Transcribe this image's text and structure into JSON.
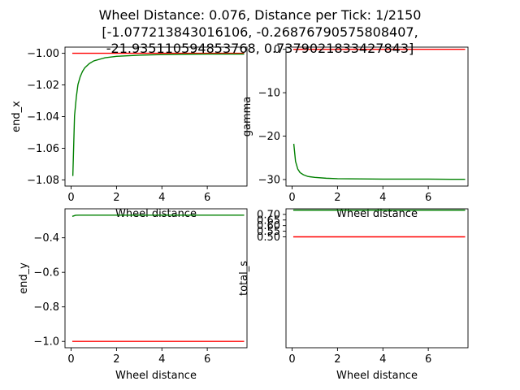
{
  "title_lines": [
    "Wheel Distance: 0.076, Distance per Tick: 1/2150",
    "[-1.077213843016106, -0.26876790575808407,",
    "-21.935110594853768, 0.7379021833427843]"
  ],
  "colors": {
    "series_a": "#ff0000",
    "series_b": "#008000",
    "axes": "#000000"
  },
  "chart_data": [
    {
      "type": "line",
      "xlabel": "Wheel distance",
      "ylabel": "end_x",
      "xlim": [
        -0.27,
        7.75
      ],
      "ylim": [
        -1.0839,
        -0.9961
      ],
      "xticks": [
        0,
        2,
        4,
        6
      ],
      "yticks": [
        -1.08,
        -1.06,
        -1.04,
        -1.02,
        -1.0
      ],
      "ytick_labels": [
        "−1.08",
        "−1.06",
        "−1.04",
        "−1.02",
        "−1.00"
      ],
      "grid": false,
      "series": [
        {
          "color": "#ff0000",
          "x": [
            0.076,
            7.6
          ],
          "y": [
            -1.0,
            -1.0
          ]
        },
        {
          "color": "#008000",
          "x": [
            0.076,
            0.15,
            0.23,
            0.3,
            0.4,
            0.5,
            0.6,
            0.8,
            1.0,
            1.5,
            2.0,
            3.0,
            4.0,
            5.0,
            6.0,
            7.0,
            7.6
          ],
          "y": [
            -1.0772,
            -1.0395,
            -1.0275,
            -1.0198,
            -1.0148,
            -1.0115,
            -1.0092,
            -1.0065,
            -1.0048,
            -1.0028,
            -1.0019,
            -1.0012,
            -1.0008,
            -1.0006,
            -1.0005,
            -1.0005,
            -1.0005
          ]
        }
      ]
    },
    {
      "type": "line",
      "xlabel": "Wheel distance",
      "ylabel": "gamma",
      "xlim": [
        -0.27,
        7.75
      ],
      "ylim": [
        -31.5,
        0.5
      ],
      "xticks": [
        0,
        2,
        4,
        6
      ],
      "yticks": [
        -30,
        -20,
        -10,
        0
      ],
      "ytick_labels": [
        "−30",
        "−20",
        "−10",
        "0"
      ],
      "grid": false,
      "series": [
        {
          "color": "#ff0000",
          "x": [
            0.076,
            7.6
          ],
          "y": [
            0,
            0
          ]
        },
        {
          "color": "#008000",
          "x": [
            0.076,
            0.15,
            0.25,
            0.35,
            0.5,
            0.7,
            1.0,
            1.5,
            2.0,
            3.0,
            4.0,
            5.0,
            6.0,
            7.0,
            7.6
          ],
          "y": [
            -21.9,
            -25.8,
            -27.6,
            -28.4,
            -28.9,
            -29.3,
            -29.5,
            -29.7,
            -29.8,
            -29.85,
            -29.9,
            -29.9,
            -29.9,
            -29.95,
            -29.95
          ]
        }
      ]
    },
    {
      "type": "line",
      "xlabel": "Wheel distance",
      "ylabel": "end_y",
      "xlim": [
        -0.27,
        7.75
      ],
      "ylim": [
        -1.0366,
        -0.2322
      ],
      "xticks": [
        0,
        2,
        4,
        6
      ],
      "yticks": [
        -1.0,
        -0.8,
        -0.6,
        -0.4
      ],
      "ytick_labels": [
        "−1.0",
        "−0.8",
        "−0.6",
        "−0.4"
      ],
      "grid": false,
      "series": [
        {
          "color": "#ff0000",
          "x": [
            0.076,
            7.6
          ],
          "y": [
            -1.0,
            -1.0
          ]
        },
        {
          "color": "#008000",
          "x": [
            0.076,
            0.2,
            0.35,
            0.6,
            1.0,
            2.0,
            4.0,
            6.0,
            7.6
          ],
          "y": [
            -0.275,
            -0.2695,
            -0.2688,
            -0.2688,
            -0.2688,
            -0.2688,
            -0.2688,
            -0.2688,
            -0.2688
          ]
        }
      ]
    },
    {
      "type": "line",
      "xlabel": "Wheel distance",
      "ylabel": "total_s",
      "xlim": [
        -0.27,
        7.75
      ],
      "ylim": [
        -0.4881,
        0.7497
      ],
      "xticks": [
        0,
        2,
        4,
        6
      ],
      "yticks": [
        0.5,
        0.55,
        0.6,
        0.65,
        0.7
      ],
      "ytick_labels": [
        "0.50",
        "0.55",
        "0.60",
        "0.65",
        "0.70"
      ],
      "grid": false,
      "series": [
        {
          "color": "#ff0000",
          "x": [
            0.076,
            7.6
          ],
          "y": [
            0.5,
            0.5
          ]
        },
        {
          "color": "#008000",
          "x": [
            0.076,
            7.6
          ],
          "y": [
            0.7379,
            0.7379
          ]
        }
      ]
    }
  ]
}
